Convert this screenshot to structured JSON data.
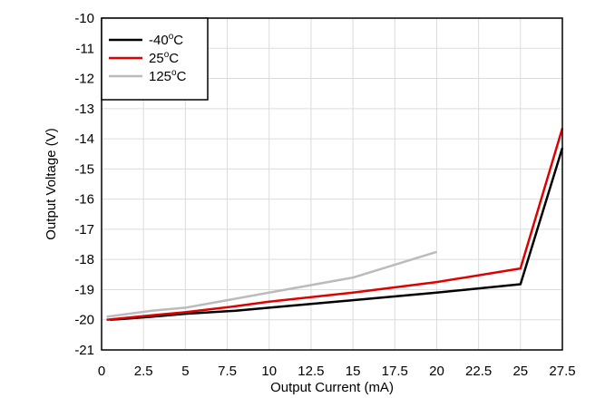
{
  "chart_data": {
    "type": "line",
    "title": "",
    "xlabel": "Output Current (mA)",
    "ylabel": "Output Voltage (V)",
    "xlim": [
      0,
      27.5
    ],
    "ylim": [
      -21,
      -10
    ],
    "xticks": [
      0,
      2.5,
      5,
      7.5,
      10,
      12.5,
      15,
      17.5,
      20,
      22.5,
      25,
      27.5
    ],
    "yticks": [
      -21,
      -20,
      -19,
      -18,
      -17,
      -16,
      -15,
      -14,
      -13,
      -12,
      -11,
      -10
    ],
    "xtick_labels": [
      "0",
      "2.5",
      "5",
      "7.5",
      "10",
      "12.5",
      "15",
      "17.5",
      "20",
      "22.5",
      "25",
      "27.5"
    ],
    "ytick_labels": [
      "-21",
      "-20",
      "-19",
      "-18",
      "-17",
      "-16",
      "-15",
      "-14",
      "-13",
      "-12",
      "-11",
      "-10"
    ],
    "grid": true,
    "legend_position": "top-left",
    "series": [
      {
        "name": "-40°C",
        "legend_main": "-40",
        "legend_sup": "o",
        "legend_tail": "C",
        "color": "#000000",
        "x": [
          0.5,
          3,
          5,
          8,
          10,
          15,
          20,
          25,
          27.5
        ],
        "y": [
          -20.0,
          -19.9,
          -19.8,
          -19.7,
          -19.6,
          -19.35,
          -19.1,
          -18.82,
          -14.3
        ]
      },
      {
        "name": "25°C",
        "legend_main": "25",
        "legend_sup": "o",
        "legend_tail": "C",
        "color": "#e00000",
        "x": [
          0.3,
          3,
          5,
          8,
          10,
          15,
          20,
          25,
          27.5
        ],
        "y": [
          -20.0,
          -19.85,
          -19.75,
          -19.55,
          -19.4,
          -19.1,
          -18.75,
          -18.3,
          -13.65
        ]
      },
      {
        "name": "125°C",
        "legend_main": "125",
        "legend_sup": "o",
        "legend_tail": "C",
        "color": "#bbbbbb",
        "x": [
          0.3,
          3,
          5,
          10,
          15,
          20
        ],
        "y": [
          -19.9,
          -19.7,
          -19.6,
          -19.1,
          -18.6,
          -17.75
        ]
      }
    ]
  }
}
